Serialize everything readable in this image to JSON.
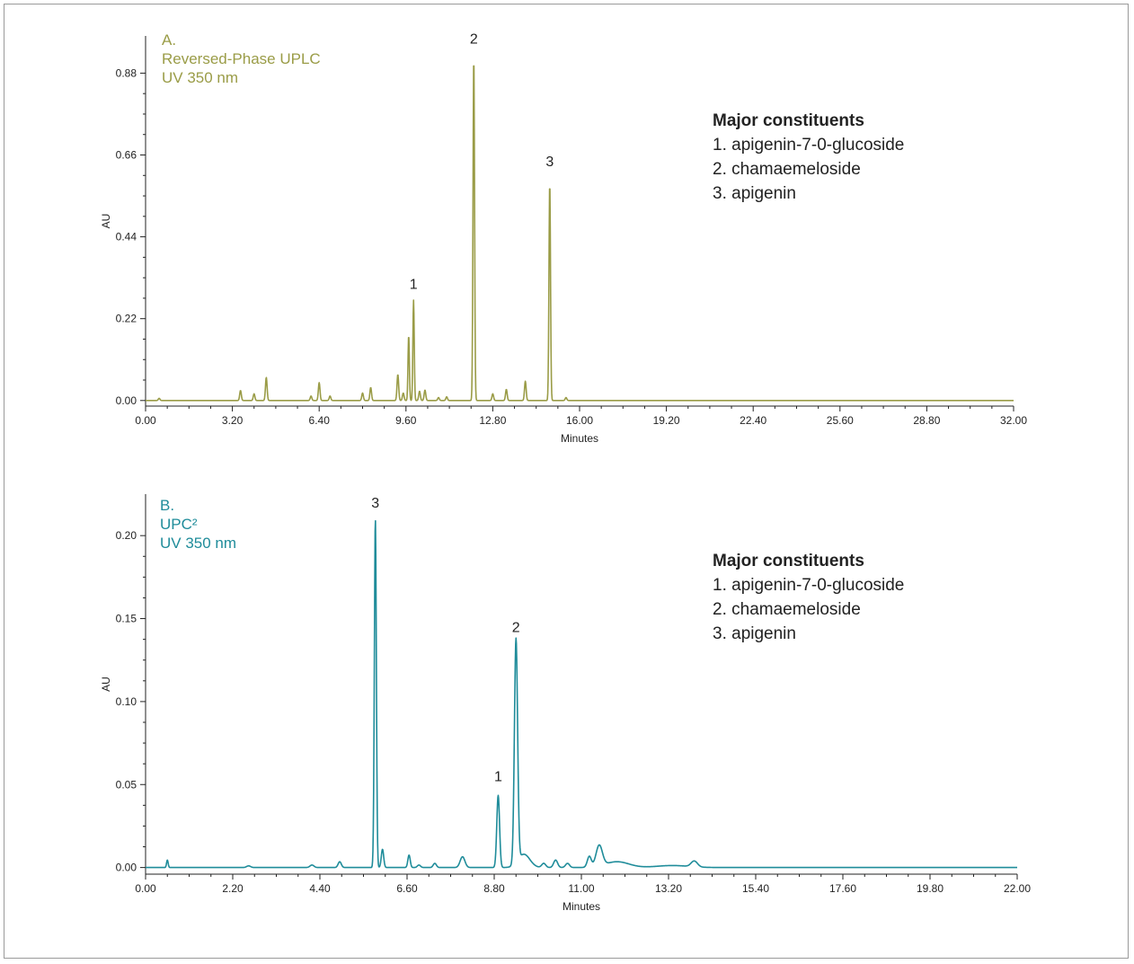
{
  "chart_data": [
    {
      "type": "line",
      "title_lines": [
        "A.",
        "Reversed-Phase UPLC",
        "UV 350 nm"
      ],
      "xlabel": "Minutes",
      "ylabel": "AU",
      "xlim": [
        0,
        32
      ],
      "ylim": [
        -0.015,
        0.98
      ],
      "x_ticks": [
        "0.00",
        "3.20",
        "6.40",
        "9.60",
        "12.80",
        "16.00",
        "19.20",
        "22.40",
        "25.60",
        "28.80",
        "32.00"
      ],
      "y_ticks": [
        "0.00",
        "0.22",
        "0.44",
        "0.66",
        "0.88"
      ],
      "color": "#9a9c47",
      "grid": false,
      "peaks": [
        {
          "x": 0.5,
          "y": 0.006,
          "w": 0.03
        },
        {
          "x": 3.5,
          "y": 0.027,
          "w": 0.03
        },
        {
          "x": 4.0,
          "y": 0.018,
          "w": 0.03
        },
        {
          "x": 4.45,
          "y": 0.062,
          "w": 0.03
        },
        {
          "x": 6.1,
          "y": 0.012,
          "w": 0.03
        },
        {
          "x": 6.4,
          "y": 0.048,
          "w": 0.03
        },
        {
          "x": 6.8,
          "y": 0.012,
          "w": 0.03
        },
        {
          "x": 8.0,
          "y": 0.02,
          "w": 0.03
        },
        {
          "x": 8.3,
          "y": 0.035,
          "w": 0.03
        },
        {
          "x": 9.3,
          "y": 0.07,
          "w": 0.03
        },
        {
          "x": 9.5,
          "y": 0.02,
          "w": 0.03
        },
        {
          "x": 9.7,
          "y": 0.175,
          "w": 0.025
        },
        {
          "x": 9.88,
          "y": 0.27,
          "w": 0.025
        },
        {
          "x": 10.1,
          "y": 0.025,
          "w": 0.03
        },
        {
          "x": 10.3,
          "y": 0.028,
          "w": 0.03
        },
        {
          "x": 10.8,
          "y": 0.008,
          "w": 0.03
        },
        {
          "x": 11.1,
          "y": 0.01,
          "w": 0.03
        },
        {
          "x": 12.1,
          "y": 0.925,
          "w": 0.028
        },
        {
          "x": 12.8,
          "y": 0.018,
          "w": 0.03
        },
        {
          "x": 13.3,
          "y": 0.03,
          "w": 0.03
        },
        {
          "x": 14.0,
          "y": 0.052,
          "w": 0.03
        },
        {
          "x": 14.9,
          "y": 0.585,
          "w": 0.028
        },
        {
          "x": 15.5,
          "y": 0.008,
          "w": 0.03
        }
      ],
      "peak_labels": [
        {
          "text": "1",
          "x": 9.88,
          "y": 0.3
        },
        {
          "text": "2",
          "x": 12.1,
          "y": 0.96
        },
        {
          "text": "3",
          "x": 14.9,
          "y": 0.63
        }
      ],
      "legend": {
        "heading": "Major constituents",
        "items": [
          "1. apigenin-7-0-glucoside",
          "2. chamaemeloside",
          "3. apigenin"
        ]
      }
    },
    {
      "type": "line",
      "title_lines": [
        "B.",
        "UPC²",
        "UV 350 nm"
      ],
      "xlabel": "Minutes",
      "ylabel": "AU",
      "xlim": [
        0,
        22
      ],
      "ylim": [
        -0.004,
        0.225
      ],
      "x_ticks": [
        "0.00",
        "2.20",
        "4.40",
        "6.60",
        "8.80",
        "11.00",
        "13.20",
        "15.40",
        "17.60",
        "19.80",
        "22.00"
      ],
      "y_ticks": [
        "0.00",
        "0.05",
        "0.10",
        "0.15",
        "0.20"
      ],
      "color": "#1f8c9a",
      "grid": false,
      "peaks": [
        {
          "x": 0.55,
          "y": 0.0045,
          "w": 0.02
        },
        {
          "x": 2.6,
          "y": 0.001,
          "w": 0.05
        },
        {
          "x": 4.2,
          "y": 0.0015,
          "w": 0.05
        },
        {
          "x": 4.9,
          "y": 0.0035,
          "w": 0.04
        },
        {
          "x": 5.8,
          "y": 0.21,
          "w": 0.025
        },
        {
          "x": 5.98,
          "y": 0.011,
          "w": 0.03
        },
        {
          "x": 6.65,
          "y": 0.0075,
          "w": 0.03
        },
        {
          "x": 6.9,
          "y": 0.0015,
          "w": 0.04
        },
        {
          "x": 7.3,
          "y": 0.0025,
          "w": 0.04
        },
        {
          "x": 8.0,
          "y": 0.0065,
          "w": 0.06
        },
        {
          "x": 8.9,
          "y": 0.0435,
          "w": 0.035
        },
        {
          "x": 9.35,
          "y": 0.135,
          "w": 0.04
        },
        {
          "x": 9.55,
          "y": 0.008,
          "w": 0.15
        },
        {
          "x": 10.05,
          "y": 0.0025,
          "w": 0.05
        },
        {
          "x": 10.35,
          "y": 0.0045,
          "w": 0.05
        },
        {
          "x": 10.65,
          "y": 0.0025,
          "w": 0.05
        },
        {
          "x": 11.2,
          "y": 0.0065,
          "w": 0.05
        },
        {
          "x": 11.45,
          "y": 0.0125,
          "w": 0.08
        },
        {
          "x": 11.9,
          "y": 0.0035,
          "w": 0.3
        },
        {
          "x": 13.3,
          "y": 0.0012,
          "w": 0.4
        },
        {
          "x": 13.85,
          "y": 0.0035,
          "w": 0.08
        }
      ],
      "peak_labels": [
        {
          "text": "3",
          "x": 5.8,
          "y": 0.217
        },
        {
          "text": "2",
          "x": 9.35,
          "y": 0.142
        },
        {
          "text": "1",
          "x": 8.9,
          "y": 0.052
        }
      ],
      "legend": {
        "heading": "Major constituents",
        "items": [
          "1. apigenin-7-0-glucoside",
          "2. chamaemeloside",
          "3. apigenin"
        ]
      }
    }
  ]
}
